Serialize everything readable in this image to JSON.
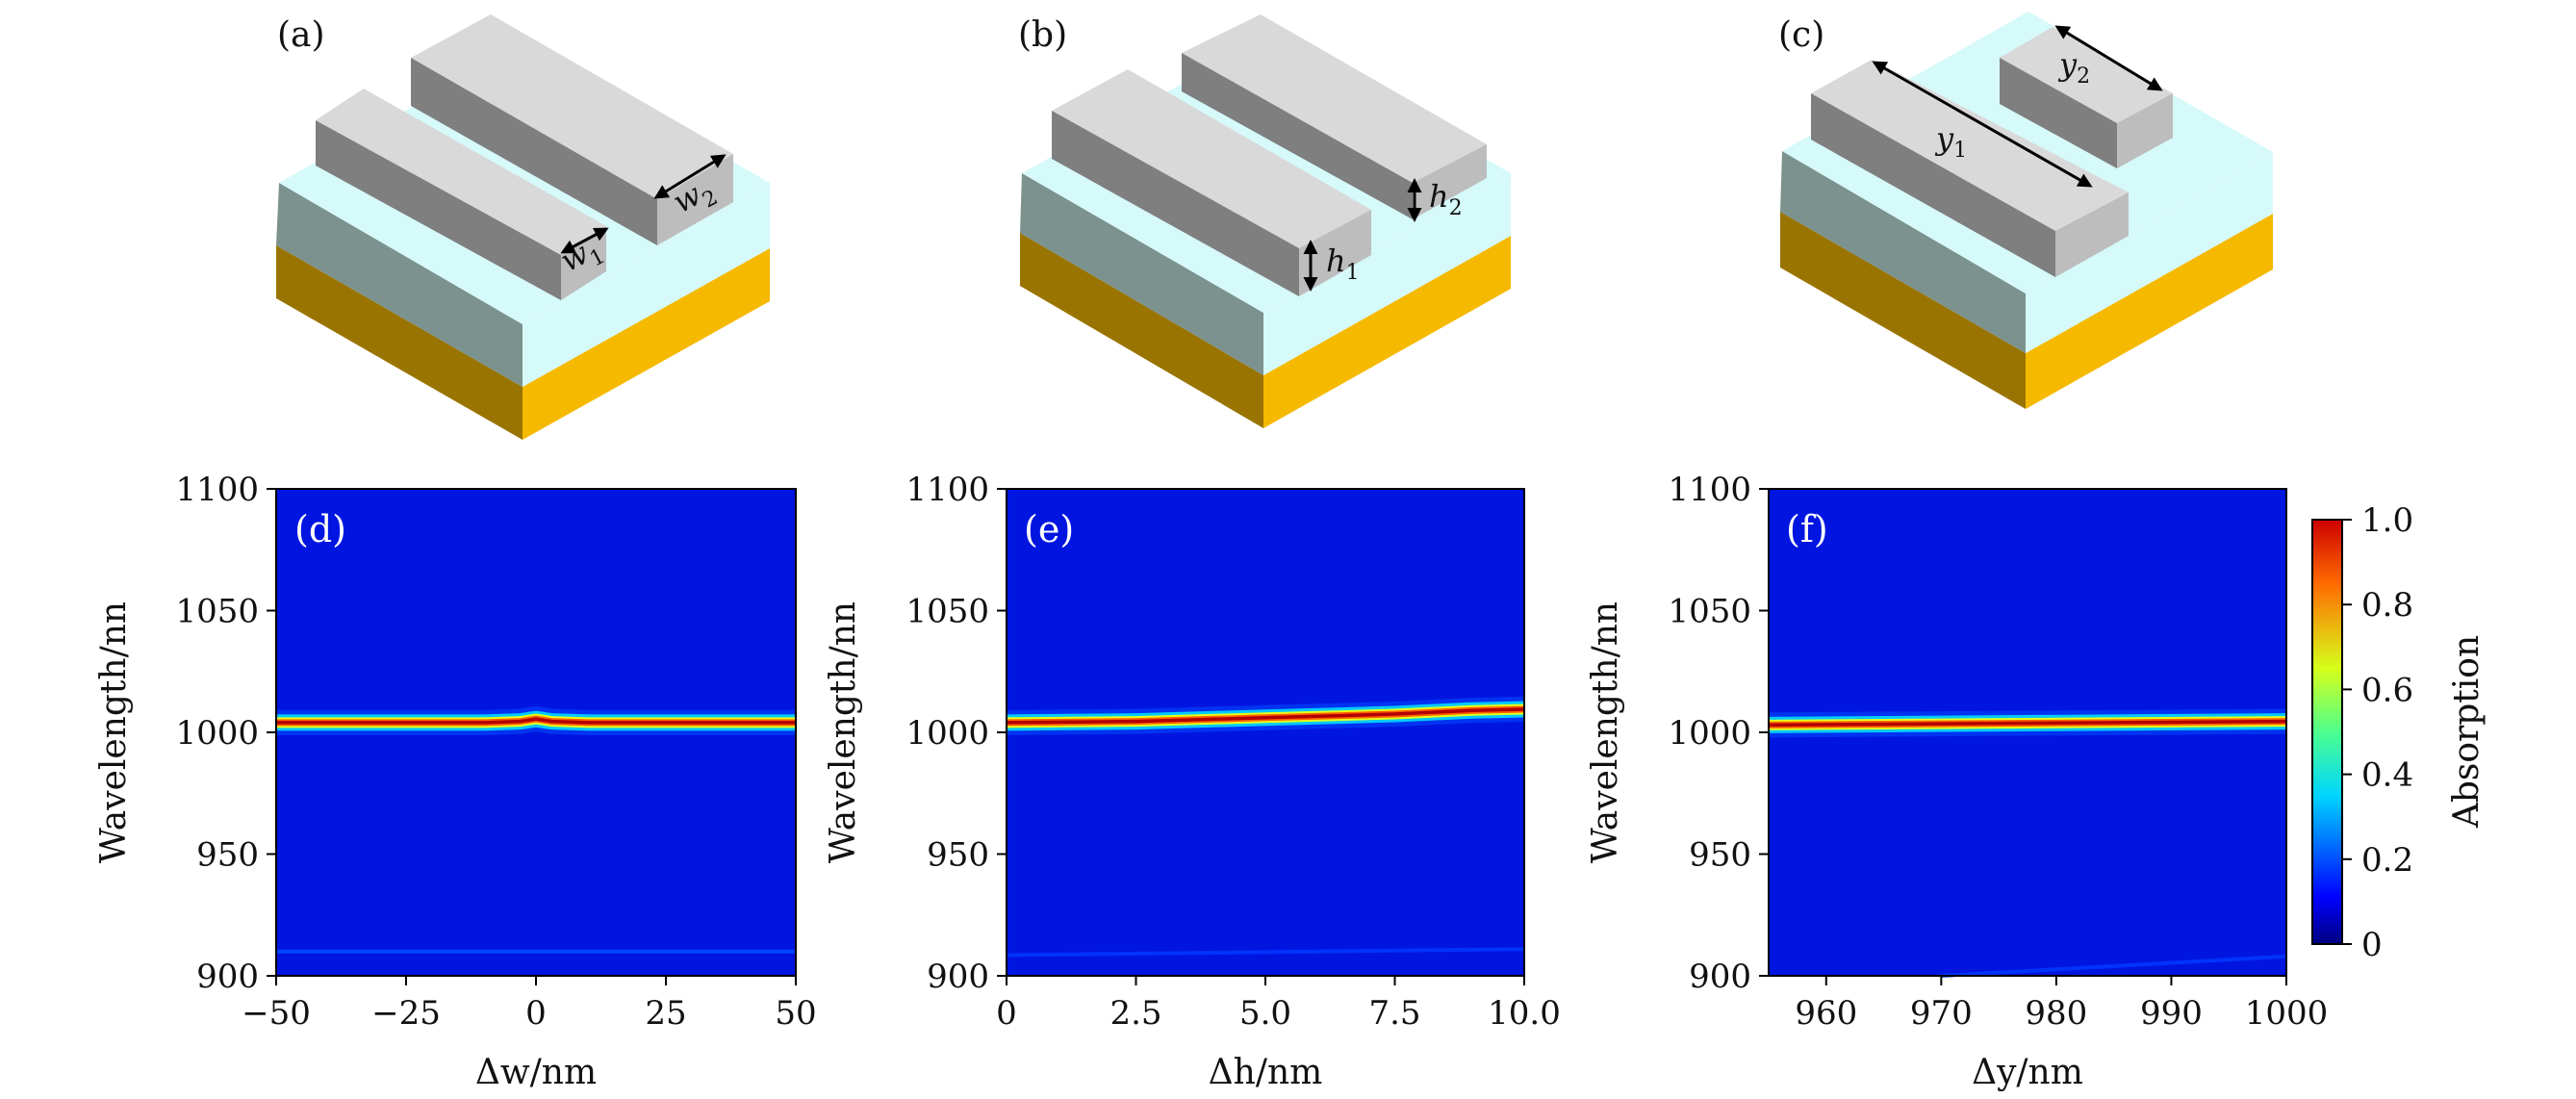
{
  "schematics": [
    {
      "label": "(a)",
      "dims": [
        {
          "name": "w",
          "sub": "1"
        },
        {
          "name": "w",
          "sub": "2"
        }
      ]
    },
    {
      "label": "(b)",
      "dims": [
        {
          "name": "h",
          "sub": "1"
        },
        {
          "name": "h",
          "sub": "2"
        }
      ]
    },
    {
      "label": "(c)",
      "dims": [
        {
          "name": "y",
          "sub": "1"
        },
        {
          "name": "y",
          "sub": "2"
        }
      ]
    }
  ],
  "colors": {
    "gold_top": "#f5b900",
    "gold_side": "#9a7400",
    "substrate_top": "#d6f9fa",
    "substrate_side": "#7b928e",
    "bar_top": "#d9d9d9",
    "bar_left": "#7f7f7f",
    "bar_front": "#bdbdbd",
    "map_background": "#0015e0",
    "peak": "#e01010"
  },
  "chart_data": [
    {
      "type": "heatmap",
      "panel_label": "(d)",
      "xlabel": "Δw/nm",
      "ylabel": "Wavelength/nn",
      "xlim": [
        -50,
        50
      ],
      "ylim": [
        900,
        1100
      ],
      "xticks": [
        "−50",
        "−25",
        "0",
        "25",
        "50"
      ],
      "xtick_values": [
        -50,
        -25,
        0,
        25,
        50
      ],
      "yticks": [
        "900",
        "950",
        "1000",
        "1050",
        "1100"
      ],
      "ytick_values": [
        900,
        950,
        1000,
        1050,
        1100
      ],
      "peak_x": [
        -50,
        -25,
        -10,
        -3,
        0,
        3,
        10,
        25,
        50
      ],
      "peak_wavelength": [
        1004,
        1004,
        1004,
        1004.5,
        1005.5,
        1004.5,
        1004,
        1004,
        1004
      ],
      "peak_absorption": 0.95,
      "secondary_x": [
        -50,
        50
      ],
      "secondary_wavelength": [
        910,
        910
      ],
      "secondary_absorption": 0.2
    },
    {
      "type": "heatmap",
      "panel_label": "(e)",
      "xlabel": "Δh/nm",
      "ylabel": "Wavelength/nn",
      "xlim": [
        0,
        10
      ],
      "ylim": [
        900,
        1100
      ],
      "xticks": [
        "0",
        "2.5",
        "5.0",
        "7.5",
        "10.0"
      ],
      "xtick_values": [
        0,
        2.5,
        5,
        7.5,
        10
      ],
      "yticks": [
        "900",
        "950",
        "1000",
        "1050",
        "1100"
      ],
      "ytick_values": [
        900,
        950,
        1000,
        1050,
        1100
      ],
      "peak_x": [
        0,
        2.5,
        5,
        7.5,
        9,
        10
      ],
      "peak_wavelength": [
        1004,
        1004.5,
        1006,
        1007.5,
        1009,
        1009.5
      ],
      "peak_absorption": 0.95,
      "secondary_x": [
        0,
        10
      ],
      "secondary_wavelength": [
        908.5,
        911
      ],
      "secondary_absorption": 0.18
    },
    {
      "type": "heatmap",
      "panel_label": "(f)",
      "xlabel": "Δy/nm",
      "ylabel": "Wavelength/nn",
      "xlim": [
        955,
        1000
      ],
      "ylim": [
        900,
        1100
      ],
      "xticks": [
        "960",
        "970",
        "980",
        "990",
        "1000"
      ],
      "xtick_values": [
        960,
        970,
        980,
        990,
        1000
      ],
      "yticks": [
        "900",
        "950",
        "1000",
        "1050",
        "1100"
      ],
      "ytick_values": [
        900,
        950,
        1000,
        1050,
        1100
      ],
      "peak_x": [
        955,
        970,
        985,
        1000
      ],
      "peak_wavelength": [
        1003,
        1003.5,
        1004,
        1004.5
      ],
      "peak_absorption": 0.95,
      "secondary_x": [
        970,
        1000
      ],
      "secondary_wavelength": [
        900,
        908
      ],
      "secondary_absorption": 0.18
    }
  ],
  "colorbar": {
    "label": "Absorption",
    "range": [
      0,
      1
    ],
    "ticks": [
      "0",
      "0.2",
      "0.4",
      "0.6",
      "0.8",
      "1.0"
    ],
    "tick_values": [
      0,
      0.2,
      0.4,
      0.6,
      0.8,
      1.0
    ]
  }
}
